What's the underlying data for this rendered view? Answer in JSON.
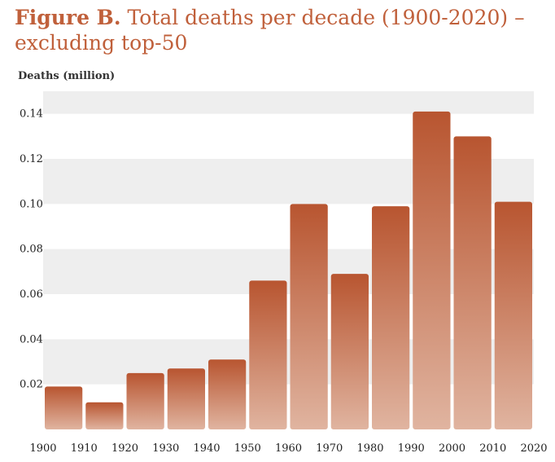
{
  "header": {
    "title_lead": "Figure B.",
    "title_rest": "Total deaths per decade (1900-2020) – excluding top-50"
  },
  "chart_data": {
    "type": "bar",
    "title": "Figure B. Total deaths per decade (1900-2020) – excluding top-50",
    "ylabel": "Deaths (million)",
    "xlabel": "",
    "x_edges": [
      1900,
      1910,
      1920,
      1930,
      1940,
      1950,
      1960,
      1970,
      1980,
      1990,
      2000,
      2010,
      2020
    ],
    "categories": [
      "1900-1910",
      "1910-1920",
      "1920-1930",
      "1930-1940",
      "1940-1950",
      "1950-1960",
      "1960-1970",
      "1970-1980",
      "1980-1990",
      "1990-2000",
      "2000-2010",
      "2010-2020"
    ],
    "values": [
      0.019,
      0.012,
      0.025,
      0.027,
      0.031,
      0.066,
      0.1,
      0.069,
      0.099,
      0.141,
      0.13,
      0.101
    ],
    "yticks": [
      0.02,
      0.04,
      0.06,
      0.08,
      0.1,
      0.12,
      0.14
    ],
    "ytick_labels": [
      "0.02",
      "0.04",
      "0.06",
      "0.08",
      "0.10",
      "0.12",
      "0.14"
    ],
    "ylim": [
      0,
      0.15
    ],
    "grid": "horizontal bands",
    "colors": {
      "bar_top": "#b85530",
      "bar_bottom": "#e0b4a0",
      "title": "#c0603b",
      "band": "#eeeeee"
    }
  }
}
